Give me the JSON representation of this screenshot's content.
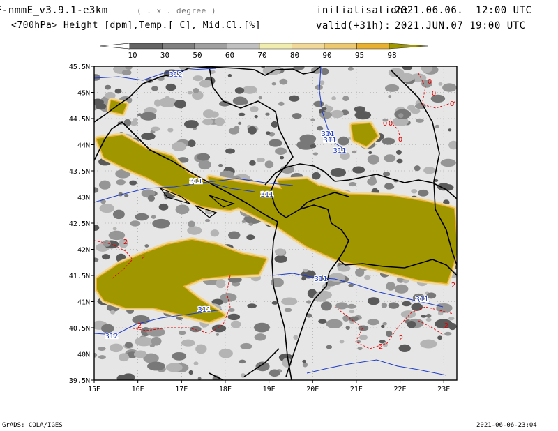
{
  "header": {
    "model_name": "F-nmmE_v3.9.1-e3km",
    "model_unit": "( . x . degree )",
    "fields": "<700hPa> Height [dpm],Temp.[ C], Mid.Cl.[%]",
    "init_label": "initialisation:",
    "init_time": "2021.06.06.  12:00 UTC",
    "valid_label": "valid(+31h):",
    "valid_time": "2021.JUN.07 19:00 UTC"
  },
  "colorbar": {
    "labels": [
      "10",
      "30",
      "50",
      "60",
      "70",
      "80",
      "90",
      "95",
      "98"
    ],
    "colors": [
      "#646464",
      "#808080",
      "#a0a0a0",
      "#c0c0c0",
      "#f0ecb0",
      "#f0d898",
      "#ecc870",
      "#e8b030",
      "#a09600"
    ]
  },
  "map": {
    "lat_labels": [
      "45.5N",
      "45N",
      "44.5N",
      "44N",
      "43.5N",
      "43N",
      "42.5N",
      "42N",
      "41.5N",
      "41N",
      "40.5N",
      "40N",
      "39.5N"
    ],
    "lon_labels": [
      "15E",
      "16E",
      "17E",
      "18E",
      "19E",
      "20E",
      "21E",
      "22E",
      "23E"
    ],
    "height_labels": [
      "312",
      "311",
      "311",
      "311",
      "311",
      "311",
      "311",
      "311",
      "311",
      "312"
    ],
    "temp_labels": [
      "0",
      "0",
      "0",
      "0",
      "0",
      "0",
      "2",
      "2",
      "2",
      "2",
      "2",
      "2",
      "2"
    ],
    "colors": {
      "background": "#e6e6e6",
      "cloud_high": "#a09600",
      "height_line": "#1e3cc8",
      "temp_line": "#e00000",
      "border": "#000000"
    }
  },
  "footer": {
    "left": "GrADS: COLA/IGES",
    "right": "2021-06-06-23:04"
  }
}
